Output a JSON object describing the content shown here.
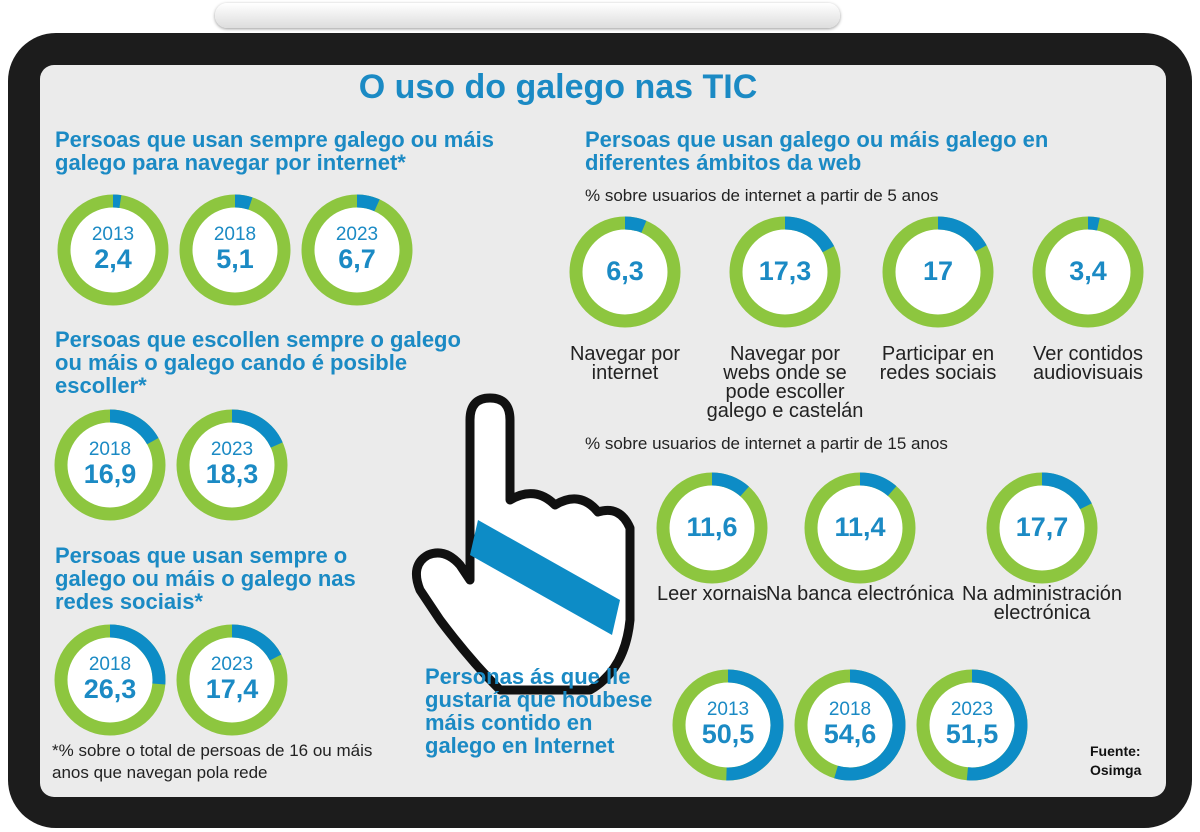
{
  "title": "O uso do galego nas TIC",
  "footnote": "*% sobre o total de persoas de 16 ou máis anos que navegan pola rede",
  "source": "Fuente: Osimga",
  "chart_data": [
    {
      "type": "donut",
      "title": "Persoas que usan sempre galego ou máis galego para navegar por internet*",
      "categories": [
        "2013",
        "2018",
        "2023"
      ],
      "values": [
        2.4,
        5.1,
        6.7
      ],
      "value_labels": [
        "2,4",
        "5,1",
        "6,7"
      ],
      "color": "#0d8cc6",
      "rest_color": "#8dc63f"
    },
    {
      "type": "donut",
      "title": "Persoas que escollen sempre o galego ou máis o galego cando é posible escoller*",
      "categories": [
        "2018",
        "2023"
      ],
      "values": [
        16.9,
        18.3
      ],
      "value_labels": [
        "16,9",
        "18,3"
      ],
      "color": "#0d8cc6",
      "rest_color": "#8dc63f"
    },
    {
      "type": "donut",
      "title": "Persoas que usan sempre o galego ou máis o galego nas redes sociais*",
      "categories": [
        "2018",
        "2023"
      ],
      "values": [
        26.3,
        17.4
      ],
      "value_labels": [
        "26,3",
        "17,4"
      ],
      "color": "#0d8cc6",
      "rest_color": "#8dc63f"
    },
    {
      "type": "donut",
      "title": "Persoas que usan  galego ou máis galego en diferentes ámbitos da web",
      "subtitle": "% sobre usuarios de internet a partir de 5 anos",
      "categories": [
        "Navegar por internet",
        "Navegar por webs onde se pode escoller galego e castelán",
        "Participar en redes sociais",
        "Ver contidos audiovisuais"
      ],
      "values": [
        6.3,
        17.3,
        17,
        3.4
      ],
      "value_labels": [
        "6,3",
        "17,3",
        "17",
        "3,4"
      ],
      "color": "#0d8cc6",
      "rest_color": "#8dc63f"
    },
    {
      "type": "donut",
      "subtitle": "% sobre usuarios de internet a partir de 15 anos",
      "categories": [
        "Leer xornais",
        "Na banca electrónica",
        "Na administración electrónica"
      ],
      "values": [
        11.6,
        11.4,
        17.7
      ],
      "value_labels": [
        "11,6",
        "11,4",
        "17,7"
      ],
      "color": "#0d8cc6",
      "rest_color": "#8dc63f"
    },
    {
      "type": "donut",
      "title": "Personas ás que lle gustaría que houbese máis contido en galego en Internet",
      "categories": [
        "2013",
        "2018",
        "2023"
      ],
      "values": [
        50.5,
        54.6,
        51.5
      ],
      "value_labels": [
        "50,5",
        "54,6",
        "51,5"
      ],
      "color": "#0d8cc6",
      "rest_color": "#8dc63f"
    }
  ]
}
